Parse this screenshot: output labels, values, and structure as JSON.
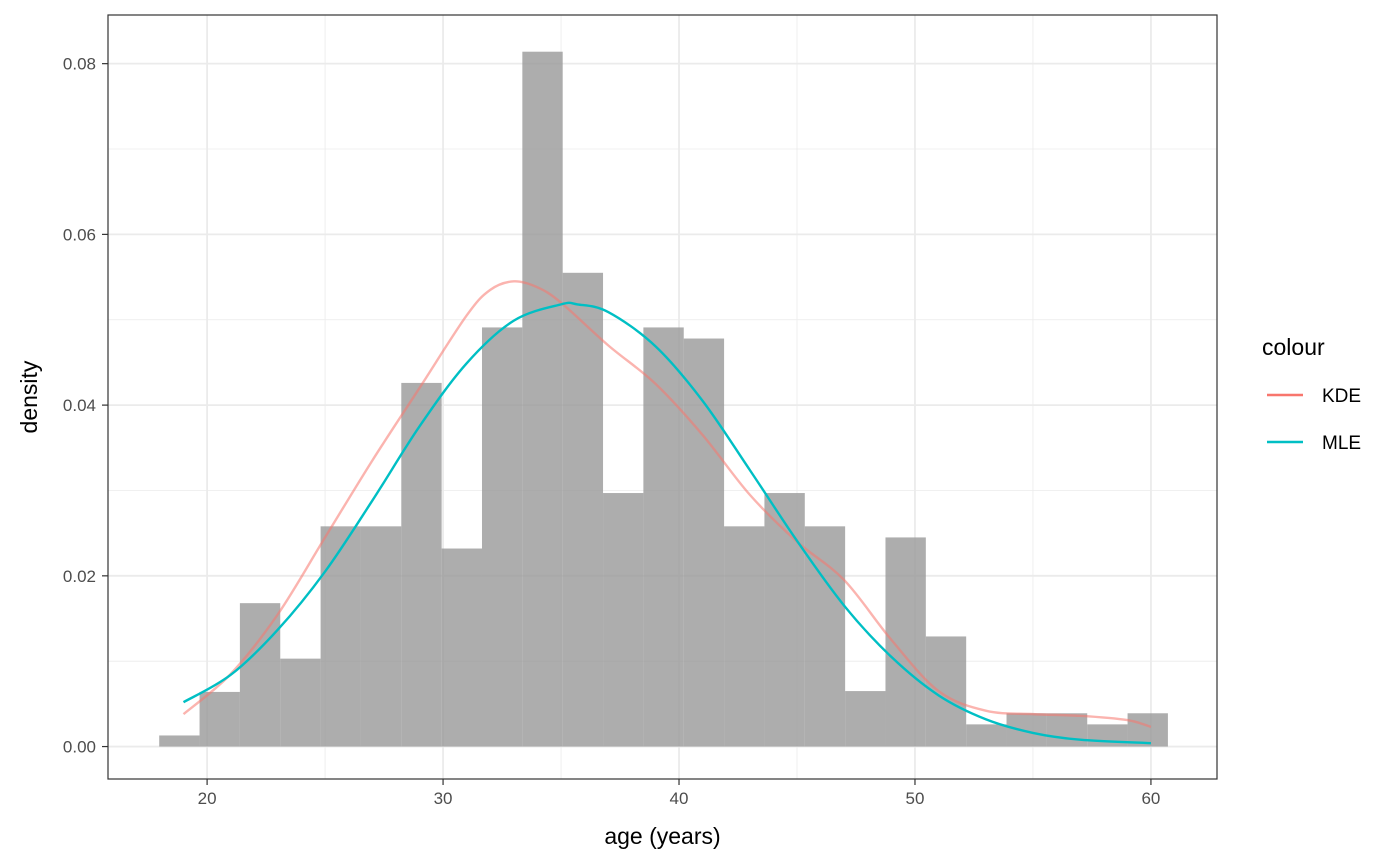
{
  "chart_data": {
    "type": "bar",
    "xlabel": "age (years)",
    "ylabel": "density",
    "xlim": [
      15.8,
      62.8
    ],
    "ylim": [
      -0.0038,
      0.0857
    ],
    "x_ticks": [
      20,
      30,
      40,
      50,
      60
    ],
    "x_tick_labels": [
      "20",
      "30",
      "40",
      "50",
      "60"
    ],
    "y_ticks": [
      0.0,
      0.02,
      0.04,
      0.06,
      0.08
    ],
    "y_tick_labels": [
      "0.00",
      "0.02",
      "0.04",
      "0.06",
      "0.08"
    ],
    "grid": true,
    "histogram": {
      "bin_width": 1.71,
      "bin_starts": [
        17.97,
        19.68,
        21.39,
        23.1,
        24.81,
        26.52,
        28.23,
        29.94,
        31.65,
        33.36,
        35.07,
        36.78,
        38.49,
        40.2,
        41.91,
        43.62,
        45.33,
        47.04,
        48.75,
        50.46,
        52.17,
        53.88,
        55.59,
        57.3,
        59.01
      ],
      "values": [
        0.0013,
        0.0064,
        0.0168,
        0.0103,
        0.0258,
        0.0258,
        0.0426,
        0.0232,
        0.0491,
        0.0814,
        0.0555,
        0.0297,
        0.0491,
        0.0478,
        0.0258,
        0.0297,
        0.0258,
        0.0065,
        0.0245,
        0.0129,
        0.0026,
        0.0039,
        0.0039,
        0.0026,
        0.0039
      ],
      "fill": "#999999",
      "opacity": 0.8
    },
    "series": [
      {
        "name": "KDE",
        "color": "#F8766D",
        "x": [
          19,
          21,
          23,
          25,
          27,
          29,
          31,
          32,
          33,
          34,
          35,
          37,
          39,
          41,
          43,
          45,
          47,
          49,
          51,
          53,
          55,
          57,
          59,
          60
        ],
        "y": [
          0.0038,
          0.0085,
          0.0155,
          0.0245,
          0.0335,
          0.042,
          0.0505,
          0.0535,
          0.0545,
          0.0538,
          0.052,
          0.047,
          0.0425,
          0.0365,
          0.0295,
          0.024,
          0.0195,
          0.0125,
          0.0065,
          0.0042,
          0.0038,
          0.0036,
          0.0031,
          0.0023
        ]
      },
      {
        "name": "MLE",
        "color": "#00BFC4",
        "x": [
          19,
          21,
          23,
          25,
          27,
          29,
          31,
          33,
          35,
          35.7,
          37,
          39,
          41,
          43,
          45,
          47,
          49,
          51,
          53,
          55,
          57,
          60
        ],
        "y": [
          0.0052,
          0.0084,
          0.0137,
          0.0205,
          0.0288,
          0.0375,
          0.0449,
          0.0499,
          0.0518,
          0.0518,
          0.0509,
          0.0469,
          0.0405,
          0.0324,
          0.0241,
          0.0165,
          0.0105,
          0.006,
          0.0032,
          0.0016,
          0.0008,
          0.0004
        ]
      }
    ],
    "legend": {
      "title": "colour",
      "position": "right",
      "items": [
        "KDE",
        "MLE"
      ]
    }
  }
}
